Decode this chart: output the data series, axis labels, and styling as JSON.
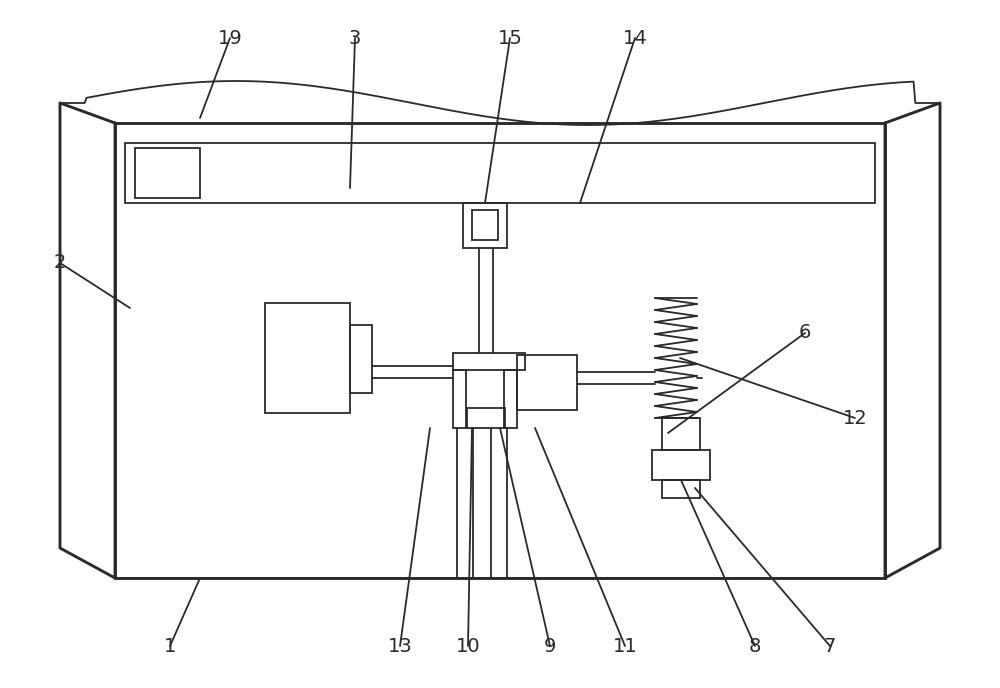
{
  "bg_color": "#ffffff",
  "line_color": "#2a2a2a",
  "line_width": 1.3,
  "fig_width": 10.0,
  "fig_height": 6.88,
  "label_fontsize": 14
}
